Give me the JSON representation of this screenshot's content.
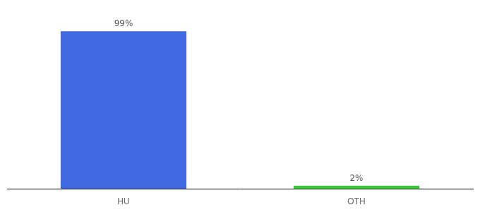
{
  "chart_data": {
    "type": "bar",
    "categories": [
      "HU",
      "OTH"
    ],
    "values": [
      99,
      2
    ],
    "value_labels": [
      "99%",
      "2%"
    ],
    "colors": [
      "#4169e1",
      "#33cc33"
    ],
    "ylim": [
      0,
      108
    ],
    "grid": false,
    "data_labels": true,
    "tick_labels": "x"
  }
}
